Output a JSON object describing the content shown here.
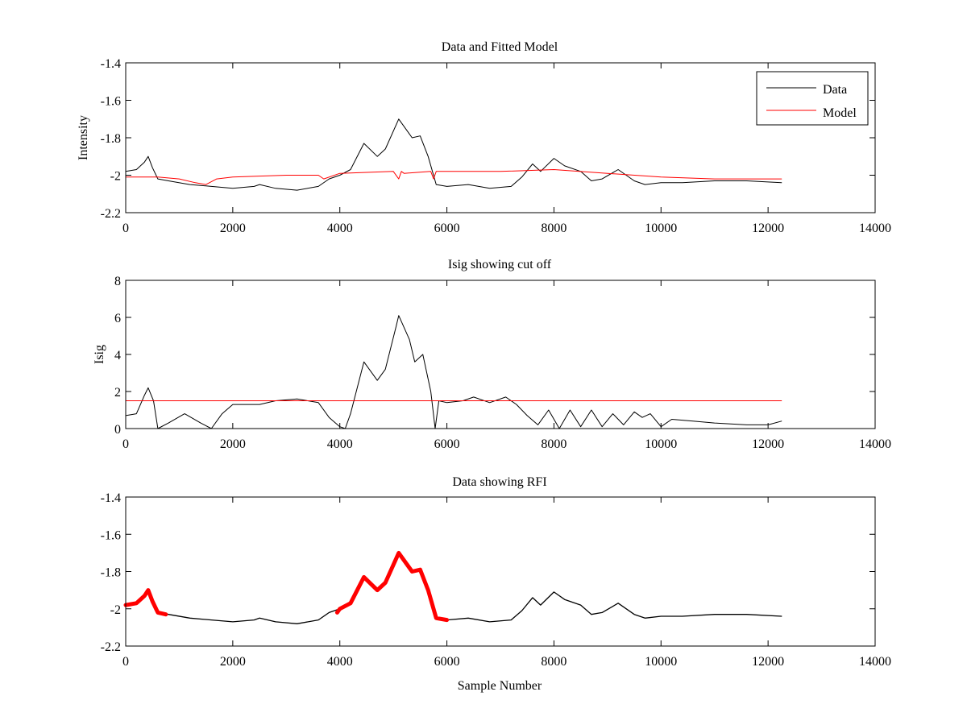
{
  "chart_data": [
    {
      "type": "line",
      "title": "Data and Fitted Model",
      "xlabel": "",
      "ylabel": "Intensity",
      "xlim": [
        0,
        14000
      ],
      "ylim": [
        -2.2,
        -1.4
      ],
      "xticks": [
        0,
        2000,
        4000,
        6000,
        8000,
        10000,
        12000,
        14000
      ],
      "yticks": [
        -2.2,
        -2,
        -1.8,
        -1.6,
        -1.4
      ],
      "xtick_labels": [
        "0",
        "2000",
        "4000",
        "6000",
        "8000",
        "10000",
        "12000",
        "14000"
      ],
      "ytick_labels": [
        "-2.2",
        "-2",
        "-1.8",
        "-1.6",
        "-1.4"
      ],
      "grid": false,
      "legend_position": "top-right",
      "colors": {
        "Data": "#000000",
        "Model": "#ff0000"
      },
      "series": [
        {
          "name": "Data",
          "x": [
            0,
            200,
            350,
            420,
            500,
            600,
            800,
            1200,
            1600,
            2000,
            2400,
            2500,
            2800,
            3200,
            3600,
            3800,
            4000,
            4200,
            4450,
            4700,
            4850,
            5100,
            5350,
            5500,
            5650,
            5800,
            6000,
            6400,
            6800,
            7200,
            7400,
            7600,
            7750,
            8000,
            8200,
            8500,
            8700,
            8900,
            9200,
            9500,
            9700,
            10000,
            10400,
            11000,
            11600,
            12250
          ],
          "y": [
            -1.98,
            -1.97,
            -1.93,
            -1.9,
            -1.96,
            -2.02,
            -2.03,
            -2.05,
            -2.06,
            -2.07,
            -2.06,
            -2.05,
            -2.07,
            -2.08,
            -2.06,
            -2.02,
            -2.0,
            -1.97,
            -1.83,
            -1.9,
            -1.86,
            -1.7,
            -1.8,
            -1.79,
            -1.9,
            -2.05,
            -2.06,
            -2.05,
            -2.07,
            -2.06,
            -2.01,
            -1.94,
            -1.98,
            -1.91,
            -1.95,
            -1.98,
            -2.03,
            -2.02,
            -1.97,
            -2.03,
            -2.05,
            -2.04,
            -2.04,
            -2.03,
            -2.03,
            -2.04
          ]
        },
        {
          "name": "Model",
          "x": [
            0,
            600,
            1000,
            1300,
            1500,
            1700,
            2000,
            3000,
            3600,
            3700,
            4000,
            5000,
            5100,
            5150,
            5200,
            5700,
            5750,
            5800,
            6000,
            7000,
            8000,
            9000,
            10000,
            11000,
            12250
          ],
          "y": [
            -2.01,
            -2.01,
            -2.02,
            -2.04,
            -2.05,
            -2.02,
            -2.01,
            -2.0,
            -2.0,
            -2.02,
            -1.99,
            -1.98,
            -2.02,
            -1.98,
            -1.99,
            -1.98,
            -2.02,
            -1.98,
            -1.98,
            -1.98,
            -1.97,
            -1.99,
            -2.01,
            -2.02,
            -2.02
          ]
        }
      ]
    },
    {
      "type": "line",
      "title": "Isig showing cut off",
      "xlabel": "",
      "ylabel": "Isig",
      "xlim": [
        0,
        14000
      ],
      "ylim": [
        0,
        8
      ],
      "xticks": [
        0,
        2000,
        4000,
        6000,
        8000,
        10000,
        12000,
        14000
      ],
      "yticks": [
        0,
        2,
        4,
        6,
        8
      ],
      "xtick_labels": [
        "0",
        "2000",
        "4000",
        "6000",
        "8000",
        "10000",
        "12000",
        "14000"
      ],
      "ytick_labels": [
        "0",
        "2",
        "4",
        "6",
        "8"
      ],
      "grid": false,
      "colors": {
        "isig": "#000000",
        "cutoff": "#ff0000"
      },
      "series": [
        {
          "x": [
            0,
            200,
            350,
            420,
            520,
            600,
            800,
            1100,
            1400,
            1600,
            1800,
            2000,
            2500,
            2800,
            3200,
            3600,
            3800,
            4000,
            4100,
            4200,
            4450,
            4700,
            4850,
            5050,
            5100,
            5300,
            5400,
            5550,
            5700,
            5780,
            5850,
            6000,
            6300,
            6500,
            6800,
            7100,
            7300,
            7500,
            7700,
            7900,
            8100,
            8300,
            8500,
            8700,
            8900,
            9100,
            9300,
            9500,
            9650,
            9800,
            10000,
            10200,
            10600,
            11000,
            11600,
            12000,
            12250
          ],
          "y": [
            0.7,
            0.8,
            1.8,
            2.2,
            1.5,
            0.0,
            0.3,
            0.8,
            0.3,
            0.0,
            0.8,
            1.3,
            1.3,
            1.5,
            1.6,
            1.4,
            0.6,
            0.1,
            0.0,
            0.8,
            3.6,
            2.6,
            3.2,
            5.5,
            6.1,
            4.8,
            3.6,
            4.0,
            2.0,
            0.0,
            1.5,
            1.4,
            1.5,
            1.7,
            1.4,
            1.7,
            1.3,
            0.7,
            0.2,
            1.0,
            0.0,
            1.0,
            0.1,
            1.0,
            0.1,
            0.8,
            0.2,
            0.9,
            0.6,
            0.8,
            0.1,
            0.5,
            0.4,
            0.3,
            0.2,
            0.2,
            0.4
          ]
        },
        {
          "x": [
            0,
            12250
          ],
          "y": [
            1.5,
            1.5
          ]
        }
      ]
    },
    {
      "type": "line",
      "title": "Data showing RFI",
      "xlabel": "Sample Number",
      "ylabel": "",
      "xlim": [
        0,
        14000
      ],
      "ylim": [
        -2.2,
        -1.4
      ],
      "xticks": [
        0,
        2000,
        4000,
        6000,
        8000,
        10000,
        12000,
        14000
      ],
      "yticks": [
        -2.2,
        -2,
        -1.8,
        -1.6,
        -1.4
      ],
      "xtick_labels": [
        "0",
        "2000",
        "4000",
        "6000",
        "8000",
        "10000",
        "12000",
        "14000"
      ],
      "ytick_labels": [
        "-2.2",
        "-2",
        "-1.8",
        "-1.6",
        "-1.4"
      ],
      "grid": false,
      "colors": {
        "data": "#000000",
        "rfi": "#ff0000"
      },
      "series": [
        {
          "x": [
            0,
            200,
            350,
            420,
            500,
            600,
            800,
            1200,
            1600,
            2000,
            2400,
            2500,
            2800,
            3200,
            3600,
            3800,
            4000,
            4200,
            4450,
            4700,
            4850,
            5100,
            5350,
            5500,
            5650,
            5800,
            6000,
            6400,
            6800,
            7200,
            7400,
            7600,
            7750,
            8000,
            8200,
            8500,
            8700,
            8900,
            9200,
            9500,
            9700,
            10000,
            10400,
            11000,
            11600,
            12250
          ],
          "y": [
            -1.98,
            -1.97,
            -1.93,
            -1.9,
            -1.96,
            -2.02,
            -2.03,
            -2.05,
            -2.06,
            -2.07,
            -2.06,
            -2.05,
            -2.07,
            -2.08,
            -2.06,
            -2.02,
            -2.0,
            -1.97,
            -1.83,
            -1.9,
            -1.86,
            -1.7,
            -1.8,
            -1.79,
            -1.9,
            -2.05,
            -2.06,
            -2.05,
            -2.07,
            -2.06,
            -2.01,
            -1.94,
            -1.98,
            -1.91,
            -1.95,
            -1.98,
            -2.03,
            -2.02,
            -1.97,
            -2.03,
            -2.05,
            -2.04,
            -2.04,
            -2.03,
            -2.03,
            -2.04
          ]
        },
        {
          "x": [
            0,
            200,
            350,
            420,
            500,
            600,
            750
          ],
          "y": [
            -1.98,
            -1.97,
            -1.93,
            -1.9,
            -1.96,
            -2.02,
            -2.03
          ]
        },
        {
          "x": [
            3950,
            4000,
            4200,
            4450,
            4700,
            4850,
            5100,
            5350,
            5500,
            5650,
            5800,
            6000
          ],
          "y": [
            -2.02,
            -2.0,
            -1.97,
            -1.83,
            -1.9,
            -1.86,
            -1.7,
            -1.8,
            -1.79,
            -1.9,
            -2.05,
            -2.06
          ]
        }
      ]
    }
  ]
}
